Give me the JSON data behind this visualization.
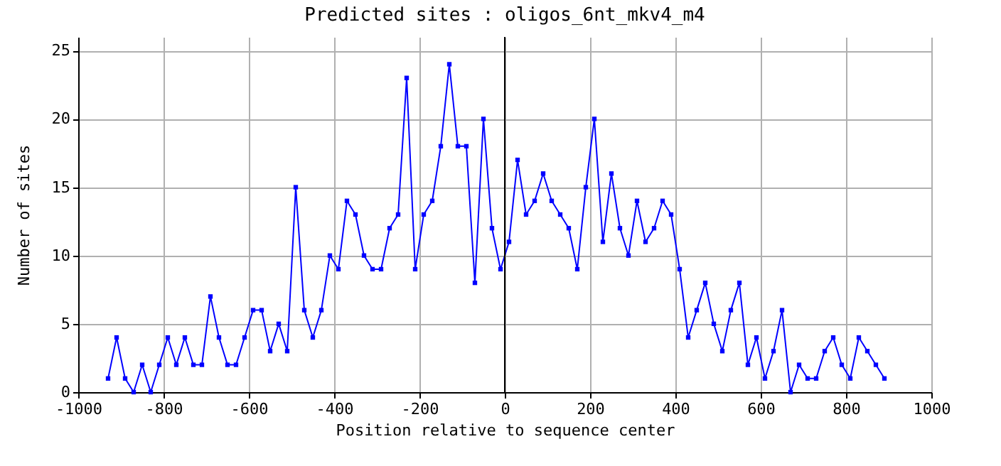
{
  "chart_data": {
    "type": "line",
    "title": "Predicted sites : oligos_6nt_mkv4_m4",
    "xlabel": "Position relative to sequence center",
    "ylabel": "Number of sites",
    "x": [
      -930,
      -910,
      -890,
      -870,
      -850,
      -830,
      -810,
      -790,
      -770,
      -750,
      -730,
      -710,
      -690,
      -670,
      -650,
      -630,
      -610,
      -590,
      -570,
      -550,
      -530,
      -510,
      -490,
      -470,
      -450,
      -430,
      -410,
      -390,
      -370,
      -350,
      -330,
      -310,
      -290,
      -270,
      -250,
      -230,
      -210,
      -190,
      -170,
      -150,
      -130,
      -110,
      -90,
      -70,
      -50,
      -30,
      -10,
      10,
      30,
      50,
      70,
      90,
      110,
      130,
      150,
      170,
      190,
      210,
      230,
      250,
      270,
      290,
      310,
      330,
      350,
      370,
      390,
      410,
      430,
      450,
      470,
      490,
      510,
      530,
      550,
      570,
      590,
      610,
      630,
      650,
      670,
      690,
      710,
      730,
      750,
      770,
      790,
      810,
      830,
      850,
      870,
      890
    ],
    "series": [
      {
        "color": "#0000ff",
        "values": [
          1,
          4,
          1,
          0,
          2,
          0,
          2,
          4,
          2,
          4,
          2,
          2,
          7,
          4,
          2,
          2,
          4,
          6,
          6,
          3,
          5,
          3,
          15,
          6,
          4,
          6,
          10,
          9,
          14,
          13,
          10,
          9,
          9,
          12,
          13,
          23,
          9,
          13,
          14,
          18,
          24,
          18,
          18,
          8,
          20,
          12,
          9,
          11,
          17,
          13,
          14,
          16,
          14,
          13,
          12,
          9,
          15,
          20,
          11,
          16,
          12,
          10,
          14,
          11,
          12,
          14,
          13,
          9,
          4,
          6,
          8,
          5,
          3,
          6,
          8,
          2,
          4,
          1,
          3,
          6,
          0,
          2,
          1,
          1,
          3,
          4,
          2,
          1,
          4,
          3,
          2,
          1
        ]
      }
    ],
    "xlim": [
      -1000,
      1000
    ],
    "xticks": [
      -1000,
      -800,
      -600,
      -400,
      -200,
      0,
      200,
      400,
      600,
      800,
      1000
    ],
    "ylim": [
      0,
      26
    ],
    "yticks": [
      0,
      5,
      10,
      15,
      20,
      25
    ],
    "ref_lines": [
      {
        "axis": "x",
        "value": 0,
        "color": "#000000"
      }
    ],
    "grid": true,
    "marker": "square",
    "line_style": "solid"
  }
}
